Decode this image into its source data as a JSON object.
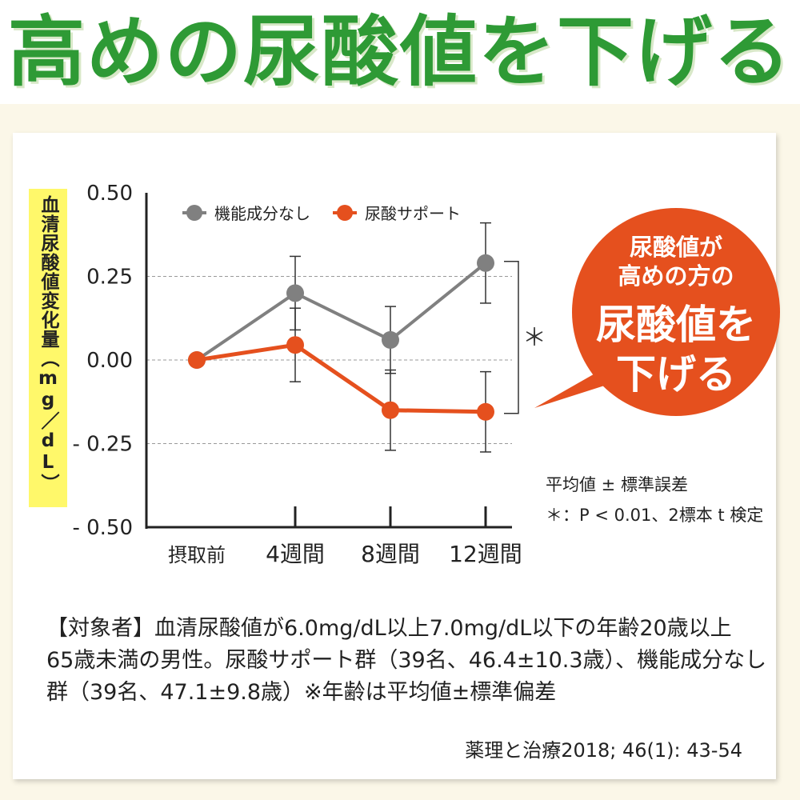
{
  "header": {
    "title": "高めの尿酸値を下げる"
  },
  "chart_data": {
    "type": "line",
    "categories": [
      "摂取前",
      "4週間",
      "8週間",
      "12週間"
    ],
    "ylabel": "血清尿酸値変化量（mg／dL）",
    "ylim": [
      -0.5,
      0.5
    ],
    "yticks": [
      "0.50",
      "0.25",
      "0.00",
      "- 0.25",
      "- 0.50"
    ],
    "ytick_values": [
      0.5,
      0.25,
      0.0,
      -0.25,
      -0.5
    ],
    "grid": "dashed at ±0.25, 0",
    "legend_position": "top",
    "series": [
      {
        "name": "機能成分なし",
        "color": "#808080",
        "values": [
          0.0,
          0.2,
          0.06,
          0.29
        ],
        "errors": [
          0,
          0.11,
          0.1,
          0.12
        ]
      },
      {
        "name": "尿酸サポート",
        "color": "#e5501e",
        "values": [
          0.0,
          0.045,
          -0.15,
          -0.155
        ],
        "errors": [
          0,
          0.11,
          0.12,
          0.12
        ]
      }
    ],
    "significance_mark": "＊",
    "notes": [
      "平均値 ± 標準誤差",
      "＊：P < 0.01、2標本 t 検定"
    ]
  },
  "callout": {
    "line1": "尿酸値が",
    "line2": "高めの方の",
    "line3": "尿酸値を",
    "line4": "下げる",
    "color": "#e5501e"
  },
  "subjects": {
    "line1": "【対象者】血清尿酸値が6.0mg/dL以上7.0mg/dL以下の年齢20歳以上",
    "line2": "65歳未満の男性。尿酸サポート群（39名、46.4±10.3歳）、機能成分なし",
    "line3": "群（39名、47.1±9.8歳）※年齢は平均値±標準偏差"
  },
  "citation": "薬理と治療2018; 46(1): 43-54"
}
